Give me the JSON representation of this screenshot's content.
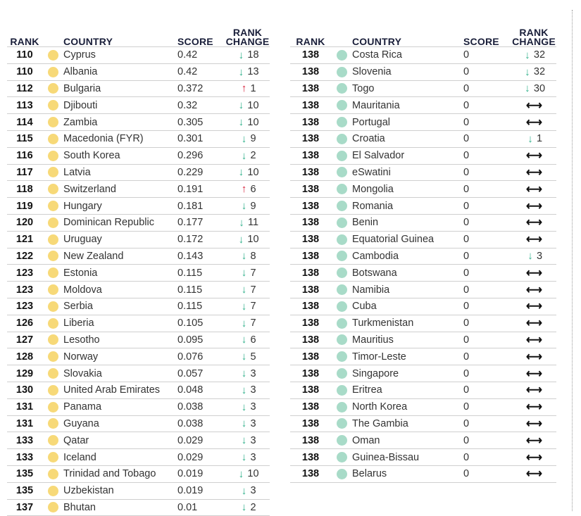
{
  "headers": {
    "rank": "RANK",
    "country": "COUNTRY",
    "score": "SCORE",
    "rank_change_line1": "RANK",
    "rank_change_line2": "CHANGE"
  },
  "colors": {
    "yellow_dot": "#f7d978",
    "teal_dot": "#a8dbc8",
    "down_arrow": "#2fb08a",
    "up_arrow": "#d6213a"
  },
  "left_rows": [
    {
      "rank": "110",
      "country": "Cyprus",
      "score": "0.42",
      "dir": "down",
      "change": "18"
    },
    {
      "rank": "110",
      "country": "Albania",
      "score": "0.42",
      "dir": "down",
      "change": "13"
    },
    {
      "rank": "112",
      "country": "Bulgaria",
      "score": "0.372",
      "dir": "up",
      "change": "1"
    },
    {
      "rank": "113",
      "country": "Djibouti",
      "score": "0.32",
      "dir": "down",
      "change": "10"
    },
    {
      "rank": "114",
      "country": "Zambia",
      "score": "0.305",
      "dir": "down",
      "change": "10"
    },
    {
      "rank": "115",
      "country": "Macedonia (FYR)",
      "score": "0.301",
      "dir": "down",
      "change": "9"
    },
    {
      "rank": "116",
      "country": "South Korea",
      "score": "0.296",
      "dir": "down",
      "change": "2"
    },
    {
      "rank": "117",
      "country": "Latvia",
      "score": "0.229",
      "dir": "down",
      "change": "10"
    },
    {
      "rank": "118",
      "country": "Switzerland",
      "score": "0.191",
      "dir": "up",
      "change": "6"
    },
    {
      "rank": "119",
      "country": "Hungary",
      "score": "0.181",
      "dir": "down",
      "change": "9"
    },
    {
      "rank": "120",
      "country": "Dominican Republic",
      "score": "0.177",
      "dir": "down",
      "change": "11"
    },
    {
      "rank": "121",
      "country": "Uruguay",
      "score": "0.172",
      "dir": "down",
      "change": "10"
    },
    {
      "rank": "122",
      "country": "New Zealand",
      "score": "0.143",
      "dir": "down",
      "change": "8"
    },
    {
      "rank": "123",
      "country": "Estonia",
      "score": "0.115",
      "dir": "down",
      "change": "7"
    },
    {
      "rank": "123",
      "country": "Moldova",
      "score": "0.115",
      "dir": "down",
      "change": "7"
    },
    {
      "rank": "123",
      "country": "Serbia",
      "score": "0.115",
      "dir": "down",
      "change": "7"
    },
    {
      "rank": "126",
      "country": "Liberia",
      "score": "0.105",
      "dir": "down",
      "change": "7"
    },
    {
      "rank": "127",
      "country": "Lesotho",
      "score": "0.095",
      "dir": "down",
      "change": "6"
    },
    {
      "rank": "128",
      "country": "Norway",
      "score": "0.076",
      "dir": "down",
      "change": "5"
    },
    {
      "rank": "129",
      "country": "Slovakia",
      "score": "0.057",
      "dir": "down",
      "change": "3"
    },
    {
      "rank": "130",
      "country": "United Arab Emirates",
      "score": "0.048",
      "dir": "down",
      "change": "3"
    },
    {
      "rank": "131",
      "country": "Panama",
      "score": "0.038",
      "dir": "down",
      "change": "3"
    },
    {
      "rank": "131",
      "country": "Guyana",
      "score": "0.038",
      "dir": "down",
      "change": "3"
    },
    {
      "rank": "133",
      "country": "Qatar",
      "score": "0.029",
      "dir": "down",
      "change": "3"
    },
    {
      "rank": "133",
      "country": "Iceland",
      "score": "0.029",
      "dir": "down",
      "change": "3"
    },
    {
      "rank": "135",
      "country": "Trinidad and Tobago",
      "score": "0.019",
      "dir": "down",
      "change": "10"
    },
    {
      "rank": "135",
      "country": "Uzbekistan",
      "score": "0.019",
      "dir": "down",
      "change": "3"
    },
    {
      "rank": "137",
      "country": "Bhutan",
      "score": "0.01",
      "dir": "down",
      "change": "2"
    }
  ],
  "right_rows": [
    {
      "rank": "138",
      "country": "Costa Rica",
      "score": "0",
      "dir": "down",
      "change": "32"
    },
    {
      "rank": "138",
      "country": "Slovenia",
      "score": "0",
      "dir": "down",
      "change": "32"
    },
    {
      "rank": "138",
      "country": "Togo",
      "score": "0",
      "dir": "down",
      "change": "30"
    },
    {
      "rank": "138",
      "country": "Mauritania",
      "score": "0",
      "dir": "same",
      "change": ""
    },
    {
      "rank": "138",
      "country": "Portugal",
      "score": "0",
      "dir": "same",
      "change": ""
    },
    {
      "rank": "138",
      "country": "Croatia",
      "score": "0",
      "dir": "down",
      "change": "1"
    },
    {
      "rank": "138",
      "country": "El Salvador",
      "score": "0",
      "dir": "same",
      "change": ""
    },
    {
      "rank": "138",
      "country": "eSwatini",
      "score": "0",
      "dir": "same",
      "change": ""
    },
    {
      "rank": "138",
      "country": "Mongolia",
      "score": "0",
      "dir": "same",
      "change": ""
    },
    {
      "rank": "138",
      "country": "Romania",
      "score": "0",
      "dir": "same",
      "change": ""
    },
    {
      "rank": "138",
      "country": "Benin",
      "score": "0",
      "dir": "same",
      "change": ""
    },
    {
      "rank": "138",
      "country": "Equatorial Guinea",
      "score": "0",
      "dir": "same",
      "change": ""
    },
    {
      "rank": "138",
      "country": "Cambodia",
      "score": "0",
      "dir": "down",
      "change": "3"
    },
    {
      "rank": "138",
      "country": "Botswana",
      "score": "0",
      "dir": "same",
      "change": ""
    },
    {
      "rank": "138",
      "country": "Namibia",
      "score": "0",
      "dir": "same",
      "change": ""
    },
    {
      "rank": "138",
      "country": "Cuba",
      "score": "0",
      "dir": "same",
      "change": ""
    },
    {
      "rank": "138",
      "country": "Turkmenistan",
      "score": "0",
      "dir": "same",
      "change": ""
    },
    {
      "rank": "138",
      "country": "Mauritius",
      "score": "0",
      "dir": "same",
      "change": ""
    },
    {
      "rank": "138",
      "country": "Timor-Leste",
      "score": "0",
      "dir": "same",
      "change": ""
    },
    {
      "rank": "138",
      "country": "Singapore",
      "score": "0",
      "dir": "same",
      "change": ""
    },
    {
      "rank": "138",
      "country": "Eritrea",
      "score": "0",
      "dir": "same",
      "change": ""
    },
    {
      "rank": "138",
      "country": "North Korea",
      "score": "0",
      "dir": "same",
      "change": ""
    },
    {
      "rank": "138",
      "country": "The Gambia",
      "score": "0",
      "dir": "same",
      "change": ""
    },
    {
      "rank": "138",
      "country": "Oman",
      "score": "0",
      "dir": "same",
      "change": ""
    },
    {
      "rank": "138",
      "country": "Guinea-Bissau",
      "score": "0",
      "dir": "same",
      "change": ""
    },
    {
      "rank": "138",
      "country": "Belarus",
      "score": "0",
      "dir": "same",
      "change": ""
    }
  ]
}
